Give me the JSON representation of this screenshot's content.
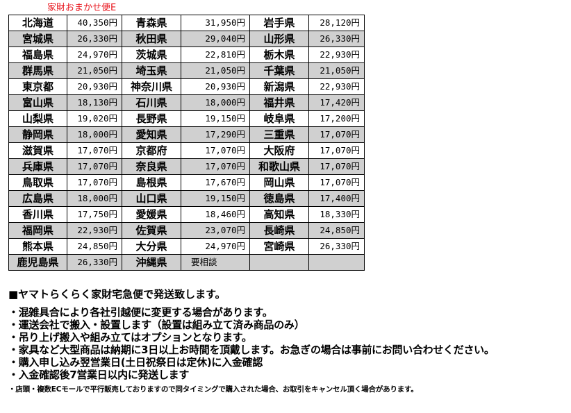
{
  "title": "家財おまかせ便E",
  "rows": [
    [
      "北海道",
      "40,350円",
      "青森県",
      "31,950円",
      "岩手県",
      "28,120円"
    ],
    [
      "宮城県",
      "26,330円",
      "秋田県",
      "29,040円",
      "山形県",
      "26,330円"
    ],
    [
      "福島県",
      "24,970円",
      "茨城県",
      "22,810円",
      "栃木県",
      "22,930円"
    ],
    [
      "群馬県",
      "21,050円",
      "埼玉県",
      "21,050円",
      "千葉県",
      "21,050円"
    ],
    [
      "東京都",
      "20,930円",
      "神奈川県",
      "20,930円",
      "新潟県",
      "22,930円"
    ],
    [
      "富山県",
      "18,130円",
      "石川県",
      "18,000円",
      "福井県",
      "17,420円"
    ],
    [
      "山梨県",
      "19,020円",
      "長野県",
      "19,150円",
      "岐阜県",
      "17,200円"
    ],
    [
      "静岡県",
      "18,000円",
      "愛知県",
      "17,290円",
      "三重県",
      "17,070円"
    ],
    [
      "滋賀県",
      "17,070円",
      "京都府",
      "17,070円",
      "大阪府",
      "17,070円"
    ],
    [
      "兵庫県",
      "17,070円",
      "奈良県",
      "17,070円",
      "和歌山県",
      "17,070円"
    ],
    [
      "鳥取県",
      "17,070円",
      "島根県",
      "17,670円",
      "岡山県",
      "17,070円"
    ],
    [
      "広島県",
      "18,000円",
      "山口県",
      "19,150円",
      "徳島県",
      "17,400円"
    ],
    [
      "香川県",
      "17,750円",
      "愛媛県",
      "18,460円",
      "高知県",
      "18,330円"
    ],
    [
      "福岡県",
      "22,930円",
      "佐賀県",
      "23,070円",
      "長崎県",
      "24,850円"
    ],
    [
      "熊本県",
      "24,850円",
      "大分県",
      "24,970円",
      "宮崎県",
      "26,330円"
    ],
    [
      "鹿児島県",
      "26,330円",
      "沖縄県",
      "要相談",
      "",
      ""
    ]
  ],
  "notes": {
    "heading": "■ヤマトらくらく家財宅急便で発送致します。",
    "bullets": [
      "・混雑具合により各社引越便に変更する場合があります。",
      "・運送会社で搬入・設置します（設置は組み立て済み商品のみ）",
      "・吊り上げ搬入や組み立てはオプションとなります。",
      "・家具など大型商品は納期に3日以上お時間を頂戴します。お急ぎの場合は事前にお問い合わせください。",
      "・購入申し込み翌営業日(土日祝祭日は定休)に入金確認",
      "・入金確認後7営業日以内に発送します"
    ],
    "small": "・店頭・複数ECモールで平行販売しておりますので同タイミングで購入された場合、お取引をキャンセル頂く場合があります。"
  }
}
